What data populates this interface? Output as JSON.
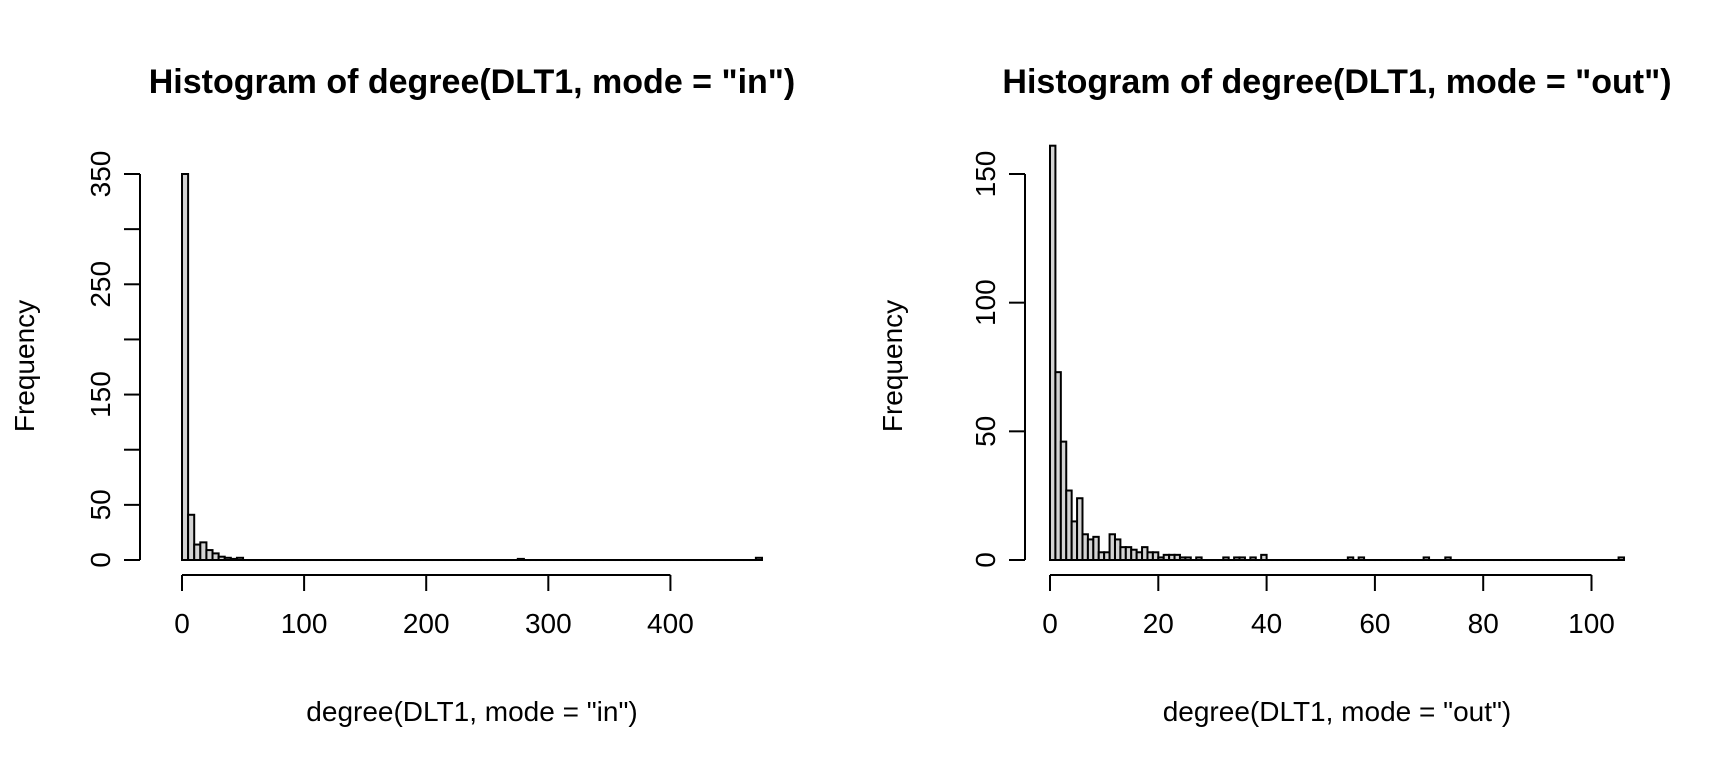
{
  "chart_data": [
    {
      "type": "bar",
      "title": "Histogram of degree(DLT1, mode = \"in\")",
      "xlabel": "degree(DLT1, mode = \"in\")",
      "ylabel": "Frequency",
      "bin_width": 5,
      "xlim": [
        0,
        475
      ],
      "ylim": [
        0,
        350
      ],
      "x_ticks": [
        0,
        100,
        200,
        300,
        400
      ],
      "y_ticks": [
        0,
        50,
        100,
        150,
        200,
        250,
        300,
        350
      ],
      "y_tick_labels": [
        "0",
        "50",
        "",
        "150",
        "",
        "250",
        "",
        "350"
      ],
      "grid": false,
      "legend": "none",
      "bins": [
        {
          "x0": 0,
          "x1": 5,
          "count": 350
        },
        {
          "x0": 5,
          "x1": 10,
          "count": 41
        },
        {
          "x0": 10,
          "x1": 15,
          "count": 14
        },
        {
          "x0": 15,
          "x1": 20,
          "count": 16
        },
        {
          "x0": 20,
          "x1": 25,
          "count": 9
        },
        {
          "x0": 25,
          "x1": 30,
          "count": 6
        },
        {
          "x0": 30,
          "x1": 35,
          "count": 3
        },
        {
          "x0": 35,
          "x1": 40,
          "count": 2
        },
        {
          "x0": 40,
          "x1": 45,
          "count": 1
        },
        {
          "x0": 45,
          "x1": 50,
          "count": 2
        },
        {
          "x0": 275,
          "x1": 280,
          "count": 1
        },
        {
          "x0": 470,
          "x1": 475,
          "count": 2
        }
      ],
      "colors": {
        "bar_fill": "#d3d3d3",
        "bar_stroke": "#000000"
      }
    },
    {
      "type": "bar",
      "title": "Histogram of degree(DLT1, mode = \"out\")",
      "xlabel": "degree(DLT1, mode = \"out\")",
      "ylabel": "Frequency",
      "bin_width": 1,
      "xlim": [
        0,
        106
      ],
      "ylim": [
        0,
        150
      ],
      "x_ticks": [
        0,
        20,
        40,
        60,
        80,
        100
      ],
      "y_ticks": [
        0,
        50,
        100,
        150
      ],
      "y_tick_labels": [
        "0",
        "50",
        "100",
        "150"
      ],
      "grid": false,
      "legend": "none",
      "bins": [
        {
          "x0": 0,
          "x1": 1,
          "count": 161
        },
        {
          "x0": 1,
          "x1": 2,
          "count": 73
        },
        {
          "x0": 2,
          "x1": 3,
          "count": 46
        },
        {
          "x0": 3,
          "x1": 4,
          "count": 27
        },
        {
          "x0": 4,
          "x1": 5,
          "count": 15
        },
        {
          "x0": 5,
          "x1": 6,
          "count": 24
        },
        {
          "x0": 6,
          "x1": 7,
          "count": 10
        },
        {
          "x0": 7,
          "x1": 8,
          "count": 8
        },
        {
          "x0": 8,
          "x1": 9,
          "count": 9
        },
        {
          "x0": 9,
          "x1": 10,
          "count": 3
        },
        {
          "x0": 10,
          "x1": 11,
          "count": 3
        },
        {
          "x0": 11,
          "x1": 12,
          "count": 10
        },
        {
          "x0": 12,
          "x1": 13,
          "count": 8
        },
        {
          "x0": 13,
          "x1": 14,
          "count": 5
        },
        {
          "x0": 14,
          "x1": 15,
          "count": 5
        },
        {
          "x0": 15,
          "x1": 16,
          "count": 4
        },
        {
          "x0": 16,
          "x1": 17,
          "count": 3
        },
        {
          "x0": 17,
          "x1": 18,
          "count": 5
        },
        {
          "x0": 18,
          "x1": 19,
          "count": 3
        },
        {
          "x0": 19,
          "x1": 20,
          "count": 3
        },
        {
          "x0": 20,
          "x1": 21,
          "count": 1
        },
        {
          "x0": 21,
          "x1": 22,
          "count": 2
        },
        {
          "x0": 22,
          "x1": 23,
          "count": 2
        },
        {
          "x0": 23,
          "x1": 24,
          "count": 2
        },
        {
          "x0": 24,
          "x1": 25,
          "count": 1
        },
        {
          "x0": 25,
          "x1": 26,
          "count": 1
        },
        {
          "x0": 27,
          "x1": 28,
          "count": 1
        },
        {
          "x0": 32,
          "x1": 33,
          "count": 1
        },
        {
          "x0": 34,
          "x1": 35,
          "count": 1
        },
        {
          "x0": 35,
          "x1": 36,
          "count": 1
        },
        {
          "x0": 37,
          "x1": 38,
          "count": 1
        },
        {
          "x0": 39,
          "x1": 40,
          "count": 2
        },
        {
          "x0": 55,
          "x1": 56,
          "count": 1
        },
        {
          "x0": 57,
          "x1": 58,
          "count": 1
        },
        {
          "x0": 69,
          "x1": 70,
          "count": 1
        },
        {
          "x0": 73,
          "x1": 74,
          "count": 1
        },
        {
          "x0": 105,
          "x1": 106,
          "count": 1
        }
      ],
      "colors": {
        "bar_fill": "#d3d3d3",
        "bar_stroke": "#000000"
      }
    }
  ]
}
